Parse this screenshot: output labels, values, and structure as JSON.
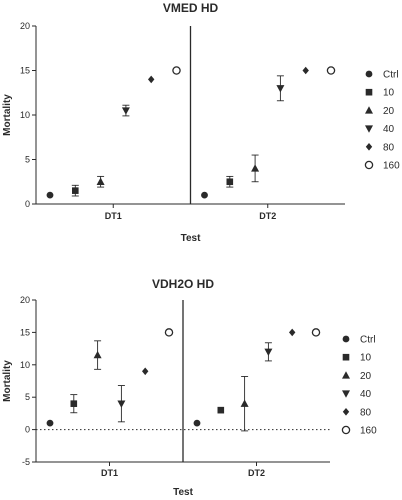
{
  "chart_data": [
    {
      "type": "scatter",
      "title": "VMED HD",
      "xlabel": "Test",
      "ylabel": "Mortality",
      "ylim": [
        0,
        20
      ],
      "yticks": [
        0,
        5,
        10,
        15,
        20
      ],
      "categories": [
        "DT1",
        "DT2"
      ],
      "zero_line": false,
      "legend_position": "right",
      "series": [
        {
          "name": "Ctrl",
          "marker": "circle",
          "values": [
            1,
            1
          ],
          "errors": [
            0,
            0
          ]
        },
        {
          "name": "10",
          "marker": "square",
          "values": [
            1.5,
            2.5
          ],
          "errors": [
            0.6,
            0.6
          ]
        },
        {
          "name": "20",
          "marker": "triangle-up",
          "values": [
            2.5,
            4
          ],
          "errors": [
            0.6,
            1.5
          ]
        },
        {
          "name": "40",
          "marker": "triangle-down",
          "values": [
            10.5,
            13
          ],
          "errors": [
            0.6,
            1.4
          ]
        },
        {
          "name": "80",
          "marker": "diamond",
          "values": [
            14,
            15
          ],
          "errors": [
            0,
            0
          ]
        },
        {
          "name": "160",
          "marker": "open-circle",
          "values": [
            15,
            15
          ],
          "errors": [
            0,
            0
          ]
        }
      ]
    },
    {
      "type": "scatter",
      "title": "VDH2O HD",
      "xlabel": "Test",
      "ylabel": "Mortality",
      "ylim": [
        -5,
        20
      ],
      "yticks": [
        -5,
        0,
        5,
        10,
        15,
        20
      ],
      "categories": [
        "DT1",
        "DT2"
      ],
      "zero_line": true,
      "legend_position": "right",
      "series": [
        {
          "name": "Ctrl",
          "marker": "circle",
          "values": [
            1,
            1
          ],
          "errors": [
            0,
            0
          ]
        },
        {
          "name": "10",
          "marker": "square",
          "values": [
            4,
            3
          ],
          "errors": [
            1.4,
            0
          ]
        },
        {
          "name": "20",
          "marker": "triangle-up",
          "values": [
            11.5,
            4
          ],
          "errors": [
            2.2,
            4.2
          ]
        },
        {
          "name": "40",
          "marker": "triangle-down",
          "values": [
            4,
            12
          ],
          "errors": [
            2.8,
            1.4
          ]
        },
        {
          "name": "80",
          "marker": "diamond",
          "values": [
            9,
            15
          ],
          "errors": [
            0,
            0
          ]
        },
        {
          "name": "160",
          "marker": "open-circle",
          "values": [
            15,
            15
          ],
          "errors": [
            0,
            0
          ]
        }
      ]
    }
  ]
}
